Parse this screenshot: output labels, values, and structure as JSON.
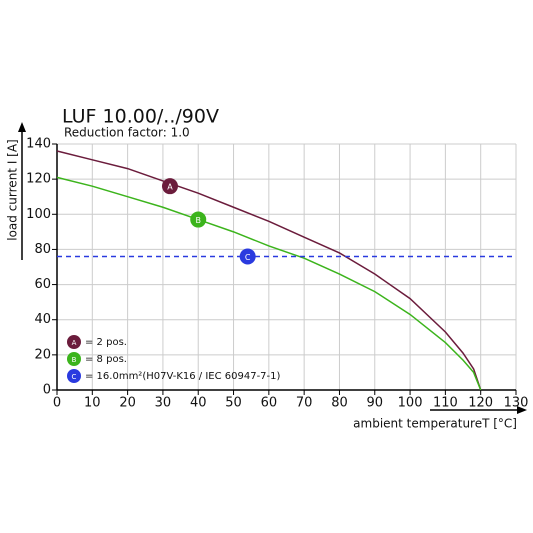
{
  "chart_data": {
    "type": "line",
    "title": "LUF 10.00/../90V",
    "subtitle": "Reduction factor: 1.0",
    "x_label": "ambient temperatureT [°C]",
    "y_label": "load current I [A]",
    "xlim": [
      0,
      130
    ],
    "ylim": [
      0,
      140
    ],
    "xticks": [
      0,
      10,
      20,
      30,
      40,
      50,
      60,
      70,
      80,
      90,
      100,
      110,
      120,
      130
    ],
    "yticks": [
      0,
      20,
      40,
      60,
      80,
      100,
      120,
      140
    ],
    "grid": true,
    "series": [
      {
        "name": "= 2 pos.",
        "label": "A",
        "color": "#6b1c3c",
        "x": [
          0,
          10,
          20,
          30,
          40,
          50,
          60,
          70,
          80,
          90,
          100,
          110,
          115,
          118,
          120
        ],
        "values": [
          136,
          131,
          126,
          119,
          112,
          104,
          96,
          87,
          78,
          66,
          52,
          33,
          21,
          12,
          0
        ],
        "marker": {
          "x": 32,
          "y": 116
        }
      },
      {
        "name": "= 8 pos.",
        "label": "B",
        "color": "#3cb41c",
        "x": [
          0,
          10,
          20,
          30,
          40,
          50,
          60,
          70,
          80,
          90,
          100,
          110,
          115,
          118,
          120
        ],
        "values": [
          121,
          116,
          110,
          104,
          97,
          90,
          82,
          75,
          66,
          56,
          43,
          27,
          17,
          10,
          0
        ],
        "marker": {
          "x": 40,
          "y": 97
        }
      },
      {
        "name": "= 16.0mm²(H07V-K16 / IEC 60947-7-1)",
        "label": "C",
        "color": "#2a3adf",
        "dashed": true,
        "x": [
          0,
          130
        ],
        "values": [
          76,
          76
        ],
        "marker": {
          "x": 54,
          "y": 76
        }
      }
    ]
  }
}
